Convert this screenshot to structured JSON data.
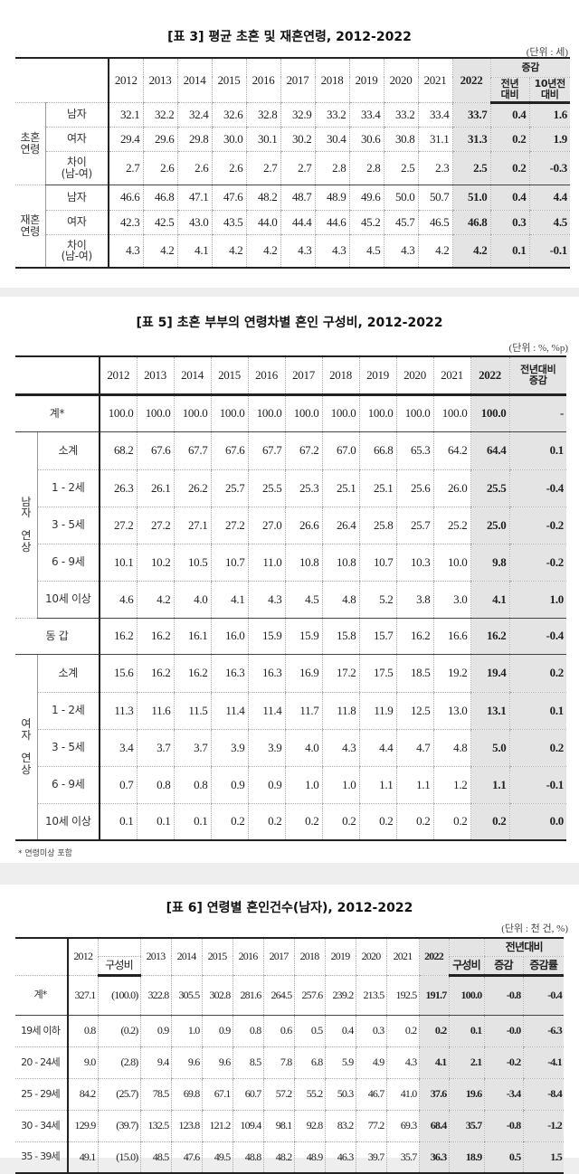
{
  "table3": {
    "title": "[표 3] 평균 초혼 및 재혼연령, 2012-2022",
    "unit": "(단위 : 세)",
    "header": {
      "years": [
        "2012",
        "2013",
        "2014",
        "2015",
        "2016",
        "2017",
        "2018",
        "2019",
        "2020",
        "2021"
      ],
      "y2022": "2022",
      "change": "증감",
      "change_cols": [
        "전년\n대비",
        "10년전\n대비"
      ]
    },
    "groups": [
      {
        "label": "초혼\n연령",
        "rows": [
          {
            "label": "남자",
            "values": [
              "32.1",
              "32.2",
              "32.4",
              "32.6",
              "32.8",
              "32.9",
              "33.2",
              "33.4",
              "33.2",
              "33.4",
              "33.7",
              "0.4",
              "1.6"
            ]
          },
          {
            "label": "여자",
            "values": [
              "29.4",
              "29.6",
              "29.8",
              "30.0",
              "30.1",
              "30.2",
              "30.4",
              "30.6",
              "30.8",
              "31.1",
              "31.3",
              "0.2",
              "1.9"
            ]
          },
          {
            "label": "차이\n(남-여)",
            "values": [
              "2.7",
              "2.6",
              "2.6",
              "2.6",
              "2.7",
              "2.7",
              "2.8",
              "2.8",
              "2.5",
              "2.3",
              "2.5",
              "0.2",
              "-0.3"
            ]
          }
        ]
      },
      {
        "label": "재혼\n연령",
        "rows": [
          {
            "label": "남자",
            "values": [
              "46.6",
              "46.8",
              "47.1",
              "47.6",
              "48.2",
              "48.7",
              "48.9",
              "49.6",
              "50.0",
              "50.7",
              "51.0",
              "0.4",
              "4.4"
            ]
          },
          {
            "label": "여자",
            "values": [
              "42.3",
              "42.5",
              "43.0",
              "43.5",
              "44.0",
              "44.4",
              "44.6",
              "45.2",
              "45.7",
              "46.5",
              "46.8",
              "0.3",
              "4.5"
            ]
          },
          {
            "label": "차이\n(남-여)",
            "values": [
              "4.3",
              "4.2",
              "4.1",
              "4.2",
              "4.2",
              "4.3",
              "4.3",
              "4.5",
              "4.3",
              "4.2",
              "4.2",
              "0.1",
              "-0.1"
            ]
          }
        ]
      }
    ]
  },
  "table5": {
    "title": "[표 5] 초혼 부부의 연령차별 혼인 구성비, 2012-2022",
    "unit": "(단위 : %, %p)",
    "header": {
      "years": [
        "2012",
        "2013",
        "2014",
        "2015",
        "2016",
        "2017",
        "2018",
        "2019",
        "2020",
        "2021"
      ],
      "y2022": "2022",
      "change": "전년대비\n증감"
    },
    "sections": [
      {
        "group": "",
        "rows": [
          {
            "label": "계*",
            "values": [
              "100.0",
              "100.0",
              "100.0",
              "100.0",
              "100.0",
              "100.0",
              "100.0",
              "100.0",
              "100.0",
              "100.0",
              "100.0",
              "-"
            ]
          }
        ]
      },
      {
        "group": "남\n자\n\n연\n상",
        "rows": [
          {
            "label": "소계",
            "values": [
              "68.2",
              "67.6",
              "67.7",
              "67.6",
              "67.7",
              "67.2",
              "67.0",
              "66.8",
              "65.3",
              "64.2",
              "64.4",
              "0.1"
            ]
          },
          {
            "label": "1 - 2세",
            "values": [
              "26.3",
              "26.1",
              "26.2",
              "25.7",
              "25.5",
              "25.3",
              "25.1",
              "25.1",
              "25.6",
              "26.0",
              "25.5",
              "-0.4"
            ]
          },
          {
            "label": "3 - 5세",
            "values": [
              "27.2",
              "27.2",
              "27.1",
              "27.2",
              "27.0",
              "26.6",
              "26.4",
              "25.8",
              "25.7",
              "25.2",
              "25.0",
              "-0.2"
            ]
          },
          {
            "label": "6 - 9세",
            "values": [
              "10.1",
              "10.2",
              "10.5",
              "10.7",
              "11.0",
              "10.8",
              "10.8",
              "10.7",
              "10.3",
              "10.0",
              "9.8",
              "-0.2"
            ]
          },
          {
            "label": "10세 이상",
            "values": [
              "4.6",
              "4.2",
              "4.0",
              "4.1",
              "4.3",
              "4.5",
              "4.8",
              "5.2",
              "3.8",
              "3.0",
              "4.1",
              "1.0"
            ]
          }
        ]
      },
      {
        "group": "",
        "rows": [
          {
            "label": "동   갑",
            "values": [
              "16.2",
              "16.2",
              "16.1",
              "16.0",
              "15.9",
              "15.9",
              "15.8",
              "15.7",
              "16.2",
              "16.6",
              "16.2",
              "-0.4"
            ]
          }
        ]
      },
      {
        "group": "여\n자\n\n연\n상",
        "rows": [
          {
            "label": "소계",
            "values": [
              "15.6",
              "16.2",
              "16.2",
              "16.3",
              "16.3",
              "16.9",
              "17.2",
              "17.5",
              "18.5",
              "19.2",
              "19.4",
              "0.2"
            ]
          },
          {
            "label": "1 - 2세",
            "values": [
              "11.3",
              "11.6",
              "11.5",
              "11.4",
              "11.4",
              "11.7",
              "11.8",
              "11.9",
              "12.5",
              "13.0",
              "13.1",
              "0.1"
            ]
          },
          {
            "label": "3 - 5세",
            "values": [
              "3.4",
              "3.7",
              "3.7",
              "3.9",
              "3.9",
              "4.0",
              "4.3",
              "4.4",
              "4.7",
              "4.8",
              "5.0",
              "0.2"
            ]
          },
          {
            "label": "6 - 9세",
            "values": [
              "0.7",
              "0.8",
              "0.8",
              "0.9",
              "0.9",
              "1.0",
              "1.0",
              "1.1",
              "1.1",
              "1.2",
              "1.1",
              "-0.1"
            ]
          },
          {
            "label": "10세 이상",
            "values": [
              "0.1",
              "0.1",
              "0.1",
              "0.2",
              "0.2",
              "0.2",
              "0.2",
              "0.2",
              "0.2",
              "0.2",
              "0.2",
              "0.0"
            ]
          }
        ]
      }
    ],
    "footnote": "* 연령미상 포함"
  },
  "table6": {
    "title": "[표 6] 연령별 혼인건수(남자), 2012-2022",
    "unit": "(단위 : 천 건, %)",
    "header": {
      "y2012": "2012",
      "share": "구성비",
      "years": [
        "2013",
        "2014",
        "2015",
        "2016",
        "2017",
        "2018",
        "2019",
        "2020",
        "2021"
      ],
      "y2022": "2022",
      "share2022": "구성비",
      "yoy": "전년대비",
      "yoy_cols": [
        "증감",
        "증감률"
      ]
    },
    "rows": [
      {
        "label": "계*",
        "values": [
          "327.1",
          "(100.0)",
          "322.8",
          "305.5",
          "302.8",
          "281.6",
          "264.5",
          "257.6",
          "239.2",
          "213.5",
          "192.5",
          "191.7",
          "100.0",
          "-0.8",
          "-0.4"
        ]
      },
      {
        "label": "19세 이하",
        "values": [
          "0.8",
          "(0.2)",
          "0.9",
          "1.0",
          "0.9",
          "0.8",
          "0.6",
          "0.5",
          "0.4",
          "0.3",
          "0.2",
          "0.2",
          "0.1",
          "-0.0",
          "-6.3"
        ]
      },
      {
        "label": "20 - 24세",
        "values": [
          "9.0",
          "(2.8)",
          "9.4",
          "9.6",
          "9.6",
          "8.5",
          "7.8",
          "6.8",
          "5.9",
          "4.9",
          "4.3",
          "4.1",
          "2.1",
          "-0.2",
          "-4.1"
        ]
      },
      {
        "label": "25 - 29세",
        "values": [
          "84.2",
          "(25.7)",
          "78.5",
          "69.8",
          "67.1",
          "60.7",
          "57.2",
          "55.2",
          "50.3",
          "46.7",
          "41.0",
          "37.6",
          "19.6",
          "-3.4",
          "-8.4"
        ]
      },
      {
        "label": "30 - 34세",
        "values": [
          "129.9",
          "(39.7)",
          "132.5",
          "123.8",
          "121.2",
          "109.4",
          "98.1",
          "92.8",
          "83.2",
          "77.2",
          "69.3",
          "68.4",
          "35.7",
          "-0.8",
          "-1.2"
        ]
      },
      {
        "label": "35 - 39세",
        "values": [
          "49.1",
          "(15.0)",
          "48.5",
          "47.6",
          "49.5",
          "48.8",
          "48.2",
          "48.9",
          "46.3",
          "39.7",
          "35.7",
          "36.3",
          "18.9",
          "0.5",
          "1.5"
        ]
      }
    ]
  }
}
